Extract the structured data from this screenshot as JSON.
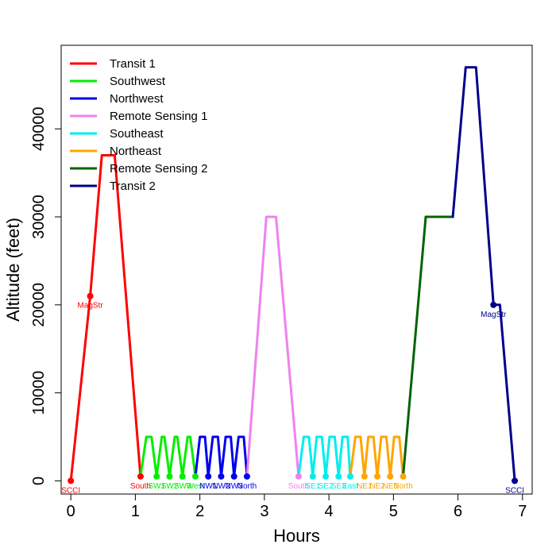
{
  "chart_data": {
    "type": "line",
    "title": "",
    "xlabel": "Hours",
    "ylabel": "Altitude (feet)",
    "xlim": [
      -0.15,
      7.15
    ],
    "ylim": [
      -1500,
      49500
    ],
    "x_ticks": [
      0,
      1,
      2,
      3,
      4,
      5,
      6,
      7
    ],
    "y_ticks": [
      0,
      10000,
      20000,
      30000,
      40000
    ],
    "legend_position": "top-left",
    "series": [
      {
        "name": "Transit 1",
        "color": "#ff0000",
        "x": [
          0,
          0.3,
          0.48,
          0.68,
          1.08
        ],
        "y": [
          0,
          21000,
          37000,
          37000,
          500
        ]
      },
      {
        "name": "Southwest",
        "color": "#00ee00",
        "x": [
          1.08,
          1.17,
          1.25,
          1.33,
          1.41,
          1.45,
          1.53,
          1.61,
          1.65,
          1.73,
          1.81,
          1.85,
          1.93
        ],
        "y": [
          500,
          5000,
          5000,
          500,
          5000,
          5000,
          500,
          5000,
          5000,
          500,
          5000,
          5000,
          500
        ]
      },
      {
        "name": "Northwest",
        "color": "#0000ee",
        "x": [
          1.93,
          2.0,
          2.08,
          2.13,
          2.2,
          2.28,
          2.33,
          2.4,
          2.48,
          2.53,
          2.6,
          2.68,
          2.73
        ],
        "y": [
          500,
          5000,
          5000,
          500,
          5000,
          5000,
          500,
          5000,
          5000,
          500,
          5000,
          5000,
          500
        ]
      },
      {
        "name": "Remote Sensing 1",
        "color": "#ee82ee",
        "x": [
          2.73,
          3.03,
          3.18,
          3.53
        ],
        "y": [
          500,
          30000,
          30000,
          500
        ]
      },
      {
        "name": "Southeast",
        "color": "#00eeee",
        "x": [
          3.53,
          3.61,
          3.69,
          3.75,
          3.81,
          3.89,
          3.95,
          4.01,
          4.09,
          4.15,
          4.21,
          4.29,
          4.33
        ],
        "y": [
          500,
          5000,
          5000,
          500,
          5000,
          5000,
          500,
          5000,
          5000,
          500,
          5000,
          5000,
          500
        ]
      },
      {
        "name": "Northeast",
        "color": "#ffa500",
        "x": [
          4.33,
          4.41,
          4.49,
          4.55,
          4.61,
          4.69,
          4.75,
          4.81,
          4.89,
          4.95,
          5.01,
          5.09,
          5.15
        ],
        "y": [
          500,
          5000,
          5000,
          500,
          5000,
          5000,
          500,
          5000,
          5000,
          500,
          5000,
          5000,
          500
        ]
      },
      {
        "name": "Remote Sensing 2",
        "color": "#006400",
        "x": [
          5.15,
          5.5,
          5.92
        ],
        "y": [
          500,
          30000,
          30000
        ]
      },
      {
        "name": "Transit 2",
        "color": "#00008b",
        "x": [
          5.92,
          6.12,
          6.28,
          6.55,
          6.65,
          6.88
        ],
        "y": [
          30000,
          47000,
          47000,
          20000,
          20000,
          0
        ]
      }
    ],
    "points": [
      {
        "x": 0,
        "y": 0,
        "label": "SCCI",
        "color": "#ff0000"
      },
      {
        "x": 0.3,
        "y": 21000,
        "label": "MagStr",
        "color": "#ff0000"
      },
      {
        "x": 1.08,
        "y": 500,
        "label": "South",
        "color": "#ff0000"
      },
      {
        "x": 1.33,
        "y": 500,
        "label": "SW1",
        "color": "#00ee00"
      },
      {
        "x": 1.53,
        "y": 500,
        "label": "SW2",
        "color": "#00ee00"
      },
      {
        "x": 1.73,
        "y": 500,
        "label": "SW3",
        "color": "#00ee00"
      },
      {
        "x": 1.93,
        "y": 500,
        "label": "West",
        "color": "#00ee00"
      },
      {
        "x": 2.13,
        "y": 500,
        "label": "NW1",
        "color": "#0000ee"
      },
      {
        "x": 2.33,
        "y": 500,
        "label": "NW2",
        "color": "#0000ee"
      },
      {
        "x": 2.53,
        "y": 500,
        "label": "NW3",
        "color": "#0000ee"
      },
      {
        "x": 2.73,
        "y": 500,
        "label": "North",
        "color": "#0000ee"
      },
      {
        "x": 3.53,
        "y": 500,
        "label": "South",
        "color": "#ee82ee"
      },
      {
        "x": 3.75,
        "y": 500,
        "label": "SE1",
        "color": "#00eeee"
      },
      {
        "x": 3.95,
        "y": 500,
        "label": "SE2",
        "color": "#00eeee"
      },
      {
        "x": 4.15,
        "y": 500,
        "label": "SE3",
        "color": "#00eeee"
      },
      {
        "x": 4.33,
        "y": 500,
        "label": "East",
        "color": "#00eeee"
      },
      {
        "x": 4.55,
        "y": 500,
        "label": "NE1",
        "color": "#ffa500"
      },
      {
        "x": 4.75,
        "y": 500,
        "label": "NE2",
        "color": "#ffa500"
      },
      {
        "x": 4.95,
        "y": 500,
        "label": "NE3",
        "color": "#ffa500"
      },
      {
        "x": 5.15,
        "y": 500,
        "label": "North",
        "color": "#ffa500"
      },
      {
        "x": 6.55,
        "y": 20000,
        "label": "MagStr",
        "color": "#00008b"
      },
      {
        "x": 6.88,
        "y": 0,
        "label": "SCCI",
        "color": "#00008b"
      }
    ]
  }
}
